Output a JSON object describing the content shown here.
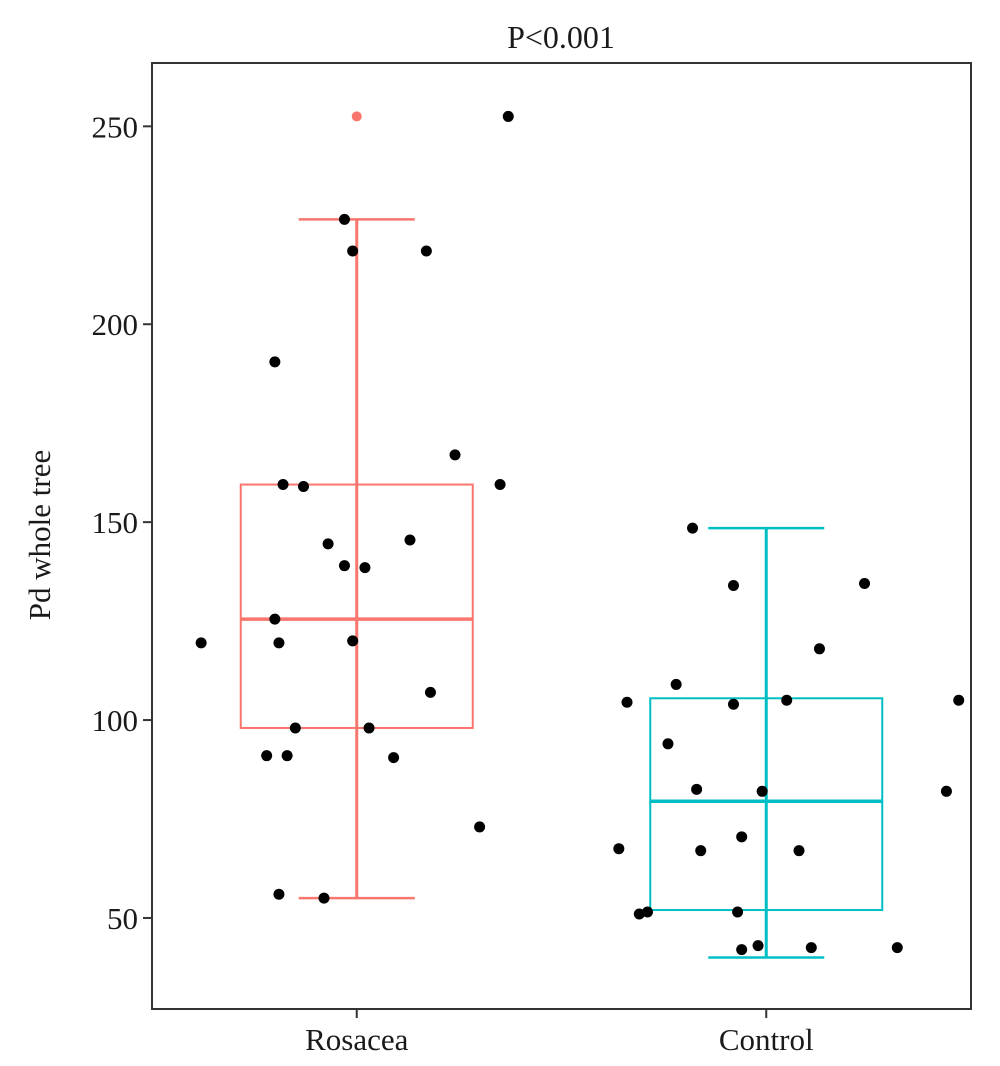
{
  "chart_data": {
    "type": "box",
    "title": "P<0.001",
    "xlabel": "",
    "ylabel": "Pd whole tree",
    "ylim": [
      27,
      266
    ],
    "yticks": [
      50,
      100,
      150,
      200,
      250
    ],
    "grid": false,
    "categories": [
      "Rosacea",
      "Control"
    ],
    "colors": {
      "Rosacea": "#F8766D",
      "Control": "#00BFC4",
      "points": "#000000"
    },
    "boxes": [
      {
        "category": "Rosacea",
        "whisker_low": 55,
        "q1": 98,
        "median": 125.5,
        "q3": 159.5,
        "whisker_high": 226.5,
        "outliers": [
          252.5
        ]
      },
      {
        "category": "Control",
        "whisker_low": 40,
        "q1": 52,
        "median": 79.5,
        "q3": 105.5,
        "whisker_high": 148.5,
        "outliers": []
      }
    ],
    "points": {
      "Rosacea": [
        {
          "x": 0.97,
          "y": 226.5
        },
        {
          "x": 0.99,
          "y": 218.5
        },
        {
          "x": 1.17,
          "y": 218.5
        },
        {
          "x": 1.37,
          "y": 252.5
        },
        {
          "x": 0.8,
          "y": 190.5
        },
        {
          "x": 1.24,
          "y": 167.0
        },
        {
          "x": 0.82,
          "y": 159.5
        },
        {
          "x": 0.87,
          "y": 159.0
        },
        {
          "x": 1.35,
          "y": 159.5
        },
        {
          "x": 0.93,
          "y": 144.5
        },
        {
          "x": 1.13,
          "y": 145.5
        },
        {
          "x": 0.97,
          "y": 139.0
        },
        {
          "x": 1.02,
          "y": 138.5
        },
        {
          "x": 0.8,
          "y": 125.5
        },
        {
          "x": 0.62,
          "y": 119.5
        },
        {
          "x": 0.81,
          "y": 119.5
        },
        {
          "x": 0.99,
          "y": 120.0
        },
        {
          "x": 1.18,
          "y": 107.0
        },
        {
          "x": 0.85,
          "y": 98.0
        },
        {
          "x": 1.03,
          "y": 98.0
        },
        {
          "x": 0.78,
          "y": 91.0
        },
        {
          "x": 0.83,
          "y": 91.0
        },
        {
          "x": 1.09,
          "y": 90.5
        },
        {
          "x": 1.3,
          "y": 73.0
        },
        {
          "x": 0.81,
          "y": 56.0
        },
        {
          "x": 0.92,
          "y": 55.0
        }
      ],
      "Control": [
        {
          "x": 1.82,
          "y": 148.5
        },
        {
          "x": 1.92,
          "y": 134.0
        },
        {
          "x": 2.24,
          "y": 134.5
        },
        {
          "x": 2.13,
          "y": 118.0
        },
        {
          "x": 1.78,
          "y": 109.0
        },
        {
          "x": 1.66,
          "y": 104.5
        },
        {
          "x": 1.92,
          "y": 104.0
        },
        {
          "x": 2.05,
          "y": 105.0
        },
        {
          "x": 2.47,
          "y": 105.0
        },
        {
          "x": 1.76,
          "y": 94.0
        },
        {
          "x": 1.83,
          "y": 82.5
        },
        {
          "x": 1.99,
          "y": 82.0
        },
        {
          "x": 2.44,
          "y": 82.0
        },
        {
          "x": 1.94,
          "y": 70.5
        },
        {
          "x": 1.64,
          "y": 67.5
        },
        {
          "x": 1.84,
          "y": 67.0
        },
        {
          "x": 2.08,
          "y": 67.0
        },
        {
          "x": 1.69,
          "y": 51.0
        },
        {
          "x": 1.71,
          "y": 51.5
        },
        {
          "x": 1.93,
          "y": 51.5
        },
        {
          "x": 1.94,
          "y": 42.0
        },
        {
          "x": 1.98,
          "y": 43.0
        },
        {
          "x": 2.11,
          "y": 42.5
        },
        {
          "x": 2.32,
          "y": 42.5
        }
      ]
    }
  }
}
